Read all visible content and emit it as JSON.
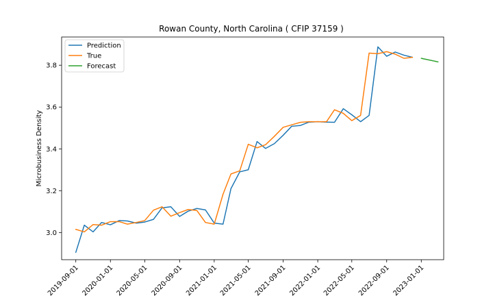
{
  "chart_data": {
    "type": "line",
    "title": "Rowan County, North Carolina ( CFIP 37159 )",
    "xlabel": "",
    "ylabel": "Microbusiness Density",
    "xlim": [
      "2019-07-13",
      "2023-03-21"
    ],
    "ylim": [
      2.87,
      3.935
    ],
    "x_ticks": [
      "2019-09-01",
      "2020-01-01",
      "2020-05-01",
      "2020-09-01",
      "2021-01-01",
      "2021-05-01",
      "2021-09-01",
      "2022-01-01",
      "2022-05-01",
      "2022-09-01",
      "2023-01-01"
    ],
    "y_ticks": [
      "3.0",
      "3.2",
      "3.4",
      "3.6",
      "3.8"
    ],
    "grid": false,
    "legend_position": "upper left",
    "series": [
      {
        "name": "Prediction",
        "color": "#1f77b4",
        "x": [
          "2019-09-01",
          "2019-10-01",
          "2019-11-01",
          "2019-12-01",
          "2020-01-01",
          "2020-02-01",
          "2020-03-01",
          "2020-04-01",
          "2020-05-01",
          "2020-06-01",
          "2020-07-01",
          "2020-08-01",
          "2020-09-01",
          "2020-10-01",
          "2020-11-01",
          "2020-12-01",
          "2021-01-01",
          "2021-02-01",
          "2021-03-01",
          "2021-04-01",
          "2021-05-01",
          "2021-06-01",
          "2021-07-01",
          "2021-08-01",
          "2021-09-01",
          "2021-10-01",
          "2021-11-01",
          "2021-12-01",
          "2022-01-01",
          "2022-02-01",
          "2022-03-01",
          "2022-04-01",
          "2022-05-01",
          "2022-06-01",
          "2022-07-01",
          "2022-08-01",
          "2022-09-01",
          "2022-10-01",
          "2022-11-01",
          "2022-12-01"
        ],
        "values": [
          2.905,
          3.035,
          3.003,
          3.048,
          3.037,
          3.057,
          3.055,
          3.045,
          3.05,
          3.063,
          3.118,
          3.123,
          3.077,
          3.102,
          3.115,
          3.108,
          3.045,
          3.04,
          3.21,
          3.29,
          3.3,
          3.435,
          3.402,
          3.425,
          3.465,
          3.508,
          3.512,
          3.528,
          3.53,
          3.528,
          3.527,
          3.592,
          3.563,
          3.53,
          3.56,
          3.888,
          3.843,
          3.863,
          3.848,
          3.838
        ]
      },
      {
        "name": "True",
        "color": "#ff7f0e",
        "x": [
          "2019-09-01",
          "2019-10-01",
          "2019-11-01",
          "2019-12-01",
          "2020-01-01",
          "2020-02-01",
          "2020-03-01",
          "2020-04-01",
          "2020-05-01",
          "2020-06-01",
          "2020-07-01",
          "2020-08-01",
          "2020-09-01",
          "2020-10-01",
          "2020-11-01",
          "2020-12-01",
          "2021-01-01",
          "2021-02-01",
          "2021-03-01",
          "2021-04-01",
          "2021-05-01",
          "2021-06-01",
          "2021-07-01",
          "2021-08-01",
          "2021-09-01",
          "2021-10-01",
          "2021-11-01",
          "2021-12-01",
          "2022-01-01",
          "2022-02-01",
          "2022-03-01",
          "2022-04-01",
          "2022-05-01",
          "2022-06-01",
          "2022-07-01",
          "2022-08-01",
          "2022-09-01",
          "2022-10-01",
          "2022-11-01",
          "2022-12-01"
        ],
        "values": [
          3.015,
          3.003,
          3.038,
          3.035,
          3.052,
          3.052,
          3.04,
          3.048,
          3.057,
          3.107,
          3.123,
          3.078,
          3.095,
          3.11,
          3.105,
          3.048,
          3.04,
          3.183,
          3.28,
          3.295,
          3.422,
          3.405,
          3.42,
          3.46,
          3.503,
          3.515,
          3.527,
          3.53,
          3.53,
          3.53,
          3.587,
          3.57,
          3.535,
          3.56,
          3.858,
          3.855,
          3.865,
          3.853,
          3.833,
          3.838
        ]
      },
      {
        "name": "Forecast",
        "color": "#2ca02c",
        "x": [
          "2023-01-01",
          "2023-03-01"
        ],
        "values": [
          3.833,
          3.816
        ]
      }
    ]
  }
}
